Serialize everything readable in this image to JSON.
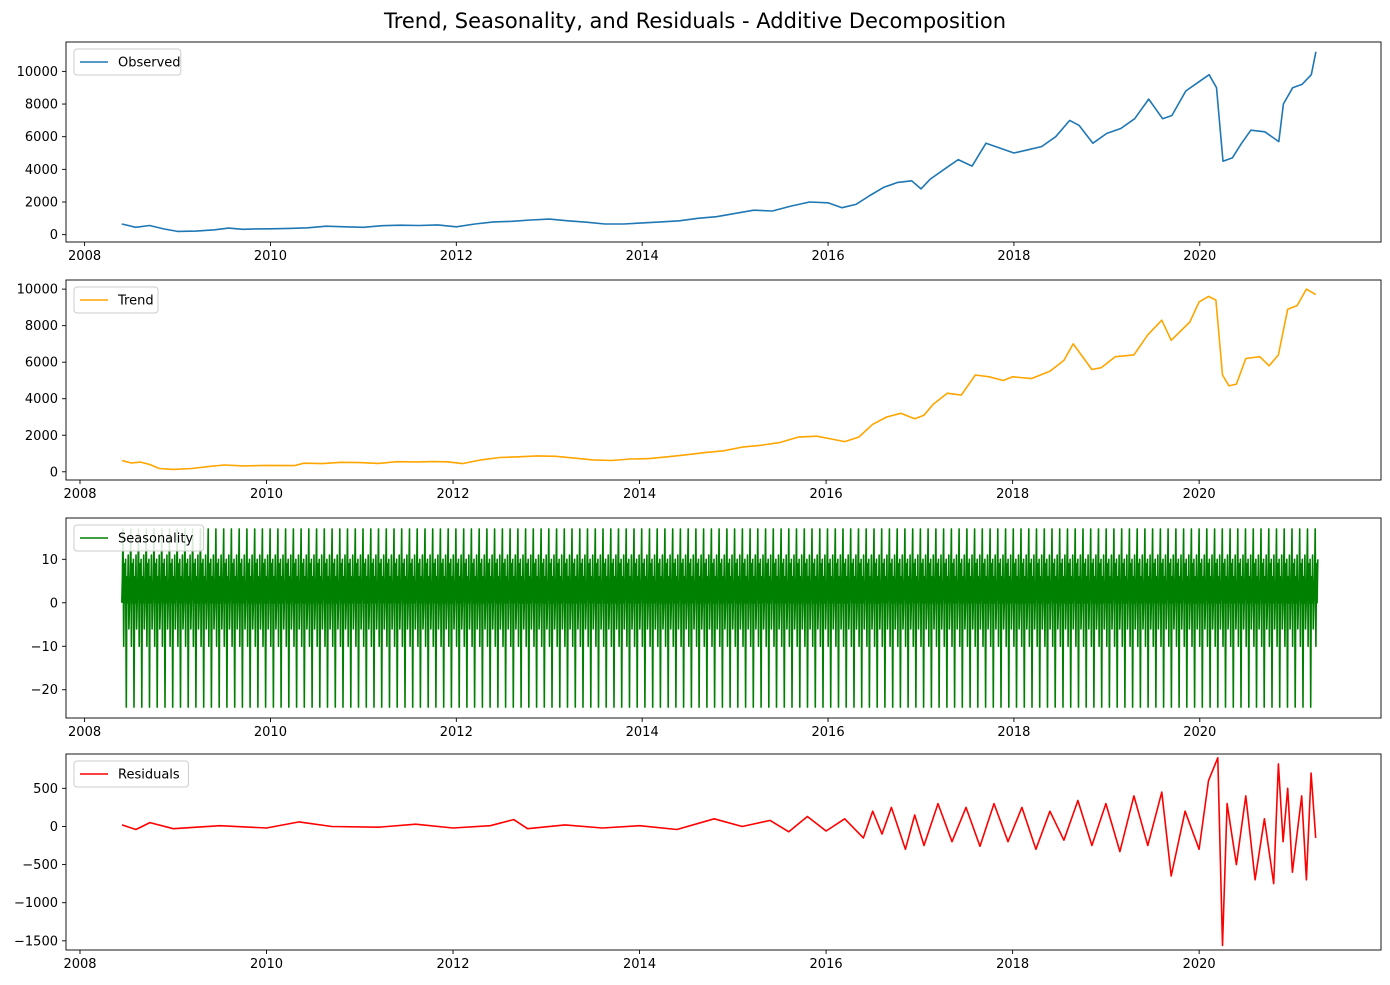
{
  "figure": {
    "title": "Trend, Seasonality, and Residuals - Additive Decomposition"
  },
  "chart_data": [
    {
      "type": "line",
      "name": "observed-panel",
      "legend": "top-left",
      "grid": false,
      "xlabel": "",
      "ylabel": "",
      "xlim": [
        2007.8,
        2021.95
      ],
      "ylim": [
        -450,
        11800
      ],
      "xticks": [
        2008,
        2010,
        2012,
        2014,
        2016,
        2018,
        2020
      ],
      "yticks": [
        0,
        2000,
        4000,
        6000,
        8000,
        10000
      ],
      "series": [
        {
          "name": "Observed",
          "color": "#1f77b4",
          "x": [
            2008.4,
            2008.55,
            2008.7,
            2008.85,
            2009.0,
            2009.2,
            2009.4,
            2009.55,
            2009.7,
            2009.85,
            2010.0,
            2010.2,
            2010.4,
            2010.6,
            2010.8,
            2011.0,
            2011.2,
            2011.4,
            2011.6,
            2011.8,
            2012.0,
            2012.2,
            2012.4,
            2012.6,
            2012.8,
            2013.0,
            2013.2,
            2013.4,
            2013.6,
            2013.8,
            2014.0,
            2014.2,
            2014.4,
            2014.6,
            2014.8,
            2015.0,
            2015.2,
            2015.4,
            2015.6,
            2015.8,
            2016.0,
            2016.15,
            2016.3,
            2016.45,
            2016.6,
            2016.75,
            2016.9,
            2017.0,
            2017.1,
            2017.25,
            2017.4,
            2017.55,
            2017.7,
            2017.85,
            2018.0,
            2018.15,
            2018.3,
            2018.45,
            2018.6,
            2018.7,
            2018.85,
            2019.0,
            2019.15,
            2019.3,
            2019.45,
            2019.6,
            2019.7,
            2019.85,
            2020.0,
            2020.1,
            2020.18,
            2020.25,
            2020.35,
            2020.45,
            2020.55,
            2020.7,
            2020.85,
            2020.9,
            2021.0,
            2021.1,
            2021.2,
            2021.25
          ],
          "y": [
            650,
            450,
            560,
            350,
            200,
            220,
            300,
            400,
            330,
            350,
            360,
            380,
            420,
            520,
            480,
            450,
            550,
            580,
            560,
            600,
            480,
            650,
            780,
            820,
            900,
            950,
            850,
            760,
            650,
            650,
            720,
            780,
            850,
            1000,
            1100,
            1300,
            1500,
            1450,
            1750,
            2000,
            1950,
            1650,
            1850,
            2400,
            2900,
            3200,
            3300,
            2800,
            3400,
            4000,
            4600,
            4200,
            5600,
            5300,
            5000,
            5200,
            5400,
            6000,
            7000,
            6700,
            5600,
            6200,
            6500,
            7100,
            8300,
            7100,
            7300,
            8800,
            9400,
            9800,
            9000,
            4500,
            4700,
            5600,
            6400,
            6300,
            5700,
            8000,
            9000,
            9200,
            9800,
            11200
          ]
        }
      ]
    },
    {
      "type": "line",
      "name": "trend-panel",
      "legend": "top-left",
      "grid": false,
      "xlabel": "",
      "ylabel": "",
      "xlim": [
        2007.85,
        2021.95
      ],
      "ylim": [
        -450,
        10500
      ],
      "xticks": [
        2008,
        2010,
        2012,
        2014,
        2016,
        2018,
        2020
      ],
      "yticks": [
        0,
        2000,
        4000,
        6000,
        8000,
        10000
      ],
      "series": [
        {
          "name": "Trend",
          "color": "#ffa500",
          "x": [
            2008.45,
            2008.55,
            2008.65,
            2008.75,
            2008.85,
            2009.0,
            2009.2,
            2009.4,
            2009.55,
            2009.75,
            2010.0,
            2010.3,
            2010.4,
            2010.6,
            2010.8,
            2011.0,
            2011.2,
            2011.4,
            2011.6,
            2011.8,
            2011.95,
            2012.1,
            2012.3,
            2012.5,
            2012.7,
            2012.9,
            2013.1,
            2013.3,
            2013.5,
            2013.7,
            2013.9,
            2014.1,
            2014.3,
            2014.5,
            2014.7,
            2014.9,
            2015.1,
            2015.3,
            2015.5,
            2015.7,
            2015.9,
            2016.05,
            2016.2,
            2016.35,
            2016.5,
            2016.65,
            2016.8,
            2016.95,
            2017.05,
            2017.15,
            2017.3,
            2017.45,
            2017.6,
            2017.75,
            2017.9,
            2018.0,
            2018.2,
            2018.4,
            2018.55,
            2018.65,
            2018.85,
            2018.95,
            2019.1,
            2019.3,
            2019.45,
            2019.6,
            2019.7,
            2019.9,
            2020.0,
            2020.1,
            2020.18,
            2020.25,
            2020.32,
            2020.4,
            2020.5,
            2020.65,
            2020.75,
            2020.85,
            2020.95,
            2021.05,
            2021.15,
            2021.25
          ],
          "y": [
            620,
            480,
            530,
            400,
            180,
            130,
            180,
            300,
            370,
            320,
            350,
            340,
            470,
            450,
            520,
            500,
            460,
            550,
            540,
            560,
            540,
            450,
            650,
            780,
            820,
            870,
            850,
            750,
            650,
            620,
            700,
            720,
            820,
            930,
            1050,
            1150,
            1350,
            1450,
            1600,
            1900,
            1950,
            1800,
            1650,
            1900,
            2600,
            3000,
            3200,
            2900,
            3100,
            3700,
            4300,
            4200,
            5300,
            5200,
            5000,
            5200,
            5100,
            5500,
            6100,
            7000,
            5600,
            5700,
            6300,
            6400,
            7500,
            8300,
            7200,
            8200,
            9300,
            9600,
            9400,
            5300,
            4700,
            4800,
            6200,
            6300,
            5800,
            6400,
            8900,
            9100,
            10000,
            9700
          ]
        }
      ]
    },
    {
      "type": "line",
      "name": "seasonality-panel",
      "legend": "top-left",
      "grid": false,
      "xlabel": "",
      "ylabel": "",
      "xlim": [
        2007.8,
        2021.95
      ],
      "ylim": [
        -26.5,
        19.5
      ],
      "xticks": [
        2008,
        2010,
        2012,
        2014,
        2016,
        2018,
        2020
      ],
      "yticks": [
        -20,
        -10,
        0,
        10
      ],
      "series": [
        {
          "name": "Seasonality",
          "color": "#008000",
          "x_start": 2008.4,
          "x_end": 2021.27,
          "period_years": 0.0833,
          "cycle_values": [
            0,
            6,
            17,
            -10,
            9,
            0,
            10,
            -24,
            6,
            0,
            11,
            -6
          ]
        }
      ]
    },
    {
      "type": "line",
      "name": "residuals-panel",
      "legend": "top-left",
      "grid": false,
      "xlabel": "",
      "ylabel": "",
      "xlim": [
        2007.85,
        2021.95
      ],
      "ylim": [
        -1620,
        950
      ],
      "xticks": [
        2008,
        2010,
        2012,
        2014,
        2016,
        2018,
        2020
      ],
      "yticks": [
        -1500,
        -1000,
        -500,
        0,
        500
      ],
      "series": [
        {
          "name": "Residuals",
          "color": "#ff0000",
          "x": [
            2008.45,
            2008.6,
            2008.75,
            2009.0,
            2009.5,
            2010.0,
            2010.35,
            2010.7,
            2011.2,
            2011.6,
            2012.0,
            2012.4,
            2012.65,
            2012.8,
            2013.2,
            2013.6,
            2014.0,
            2014.4,
            2014.8,
            2015.1,
            2015.4,
            2015.6,
            2015.8,
            2016.0,
            2016.2,
            2016.4,
            2016.5,
            2016.6,
            2016.7,
            2016.85,
            2016.95,
            2017.05,
            2017.2,
            2017.35,
            2017.5,
            2017.65,
            2017.8,
            2017.95,
            2018.1,
            2018.25,
            2018.4,
            2018.55,
            2018.7,
            2018.85,
            2019.0,
            2019.15,
            2019.3,
            2019.45,
            2019.6,
            2019.7,
            2019.85,
            2020.0,
            2020.1,
            2020.2,
            2020.25,
            2020.3,
            2020.4,
            2020.5,
            2020.6,
            2020.7,
            2020.8,
            2020.85,
            2020.9,
            2020.95,
            2021.0,
            2021.1,
            2021.15,
            2021.2,
            2021.25
          ],
          "y": [
            20,
            -40,
            50,
            -30,
            10,
            -20,
            60,
            0,
            -10,
            30,
            -20,
            10,
            90,
            -30,
            20,
            -20,
            10,
            -40,
            100,
            0,
            80,
            -70,
            130,
            -60,
            100,
            -150,
            200,
            -100,
            250,
            -300,
            150,
            -250,
            300,
            -200,
            250,
            -260,
            300,
            -200,
            250,
            -300,
            200,
            -180,
            340,
            -250,
            300,
            -330,
            400,
            -250,
            450,
            -650,
            200,
            -300,
            600,
            900,
            -1560,
            300,
            -500,
            400,
            -700,
            100,
            -750,
            820,
            -200,
            500,
            -600,
            400,
            -700,
            700,
            -150
          ]
        }
      ]
    }
  ]
}
